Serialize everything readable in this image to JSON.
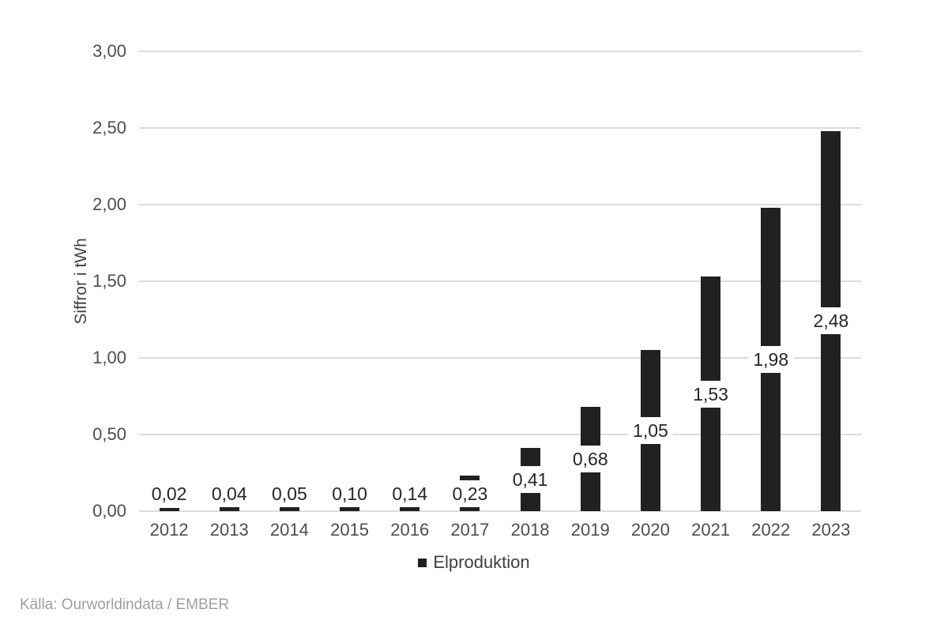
{
  "chart_data": {
    "type": "bar",
    "title": "",
    "categories": [
      "2012",
      "2013",
      "2014",
      "2015",
      "2016",
      "2017",
      "2018",
      "2019",
      "2020",
      "2021",
      "2022",
      "2023"
    ],
    "series": [
      {
        "name": "Elproduktion",
        "values": [
          0.02,
          0.04,
          0.05,
          0.1,
          0.14,
          0.23,
          0.41,
          0.68,
          1.05,
          1.53,
          1.98,
          2.48
        ]
      }
    ],
    "value_labels": [
      "0,02",
      "0,04",
      "0,05",
      "0,10",
      "0,14",
      "0,23",
      "0,41",
      "0,68",
      "1,05",
      "1,53",
      "1,98",
      "2,48"
    ],
    "xlabel": "",
    "ylabel": "Siffror i tWh",
    "ylim": [
      0,
      3.0
    ],
    "ytick_step": 0.5,
    "ytick_labels": [
      "0,00",
      "0,50",
      "1,00",
      "1,50",
      "2,00",
      "2,50",
      "3,00"
    ],
    "grid": "horizontal",
    "legend_position": "bottom-center",
    "colors": {
      "bar": "#212121",
      "data_label": "#262626",
      "axis_text": "#4d4d4d",
      "axis_title": "#404040",
      "legend_text": "#3f3f3f",
      "gridline": "#dcdcdc",
      "source_text": "#9e9e9e"
    }
  },
  "legend": {
    "label": "Elproduktion"
  },
  "footer": {
    "source": "Källa: Ourworldindata / EMBER"
  }
}
